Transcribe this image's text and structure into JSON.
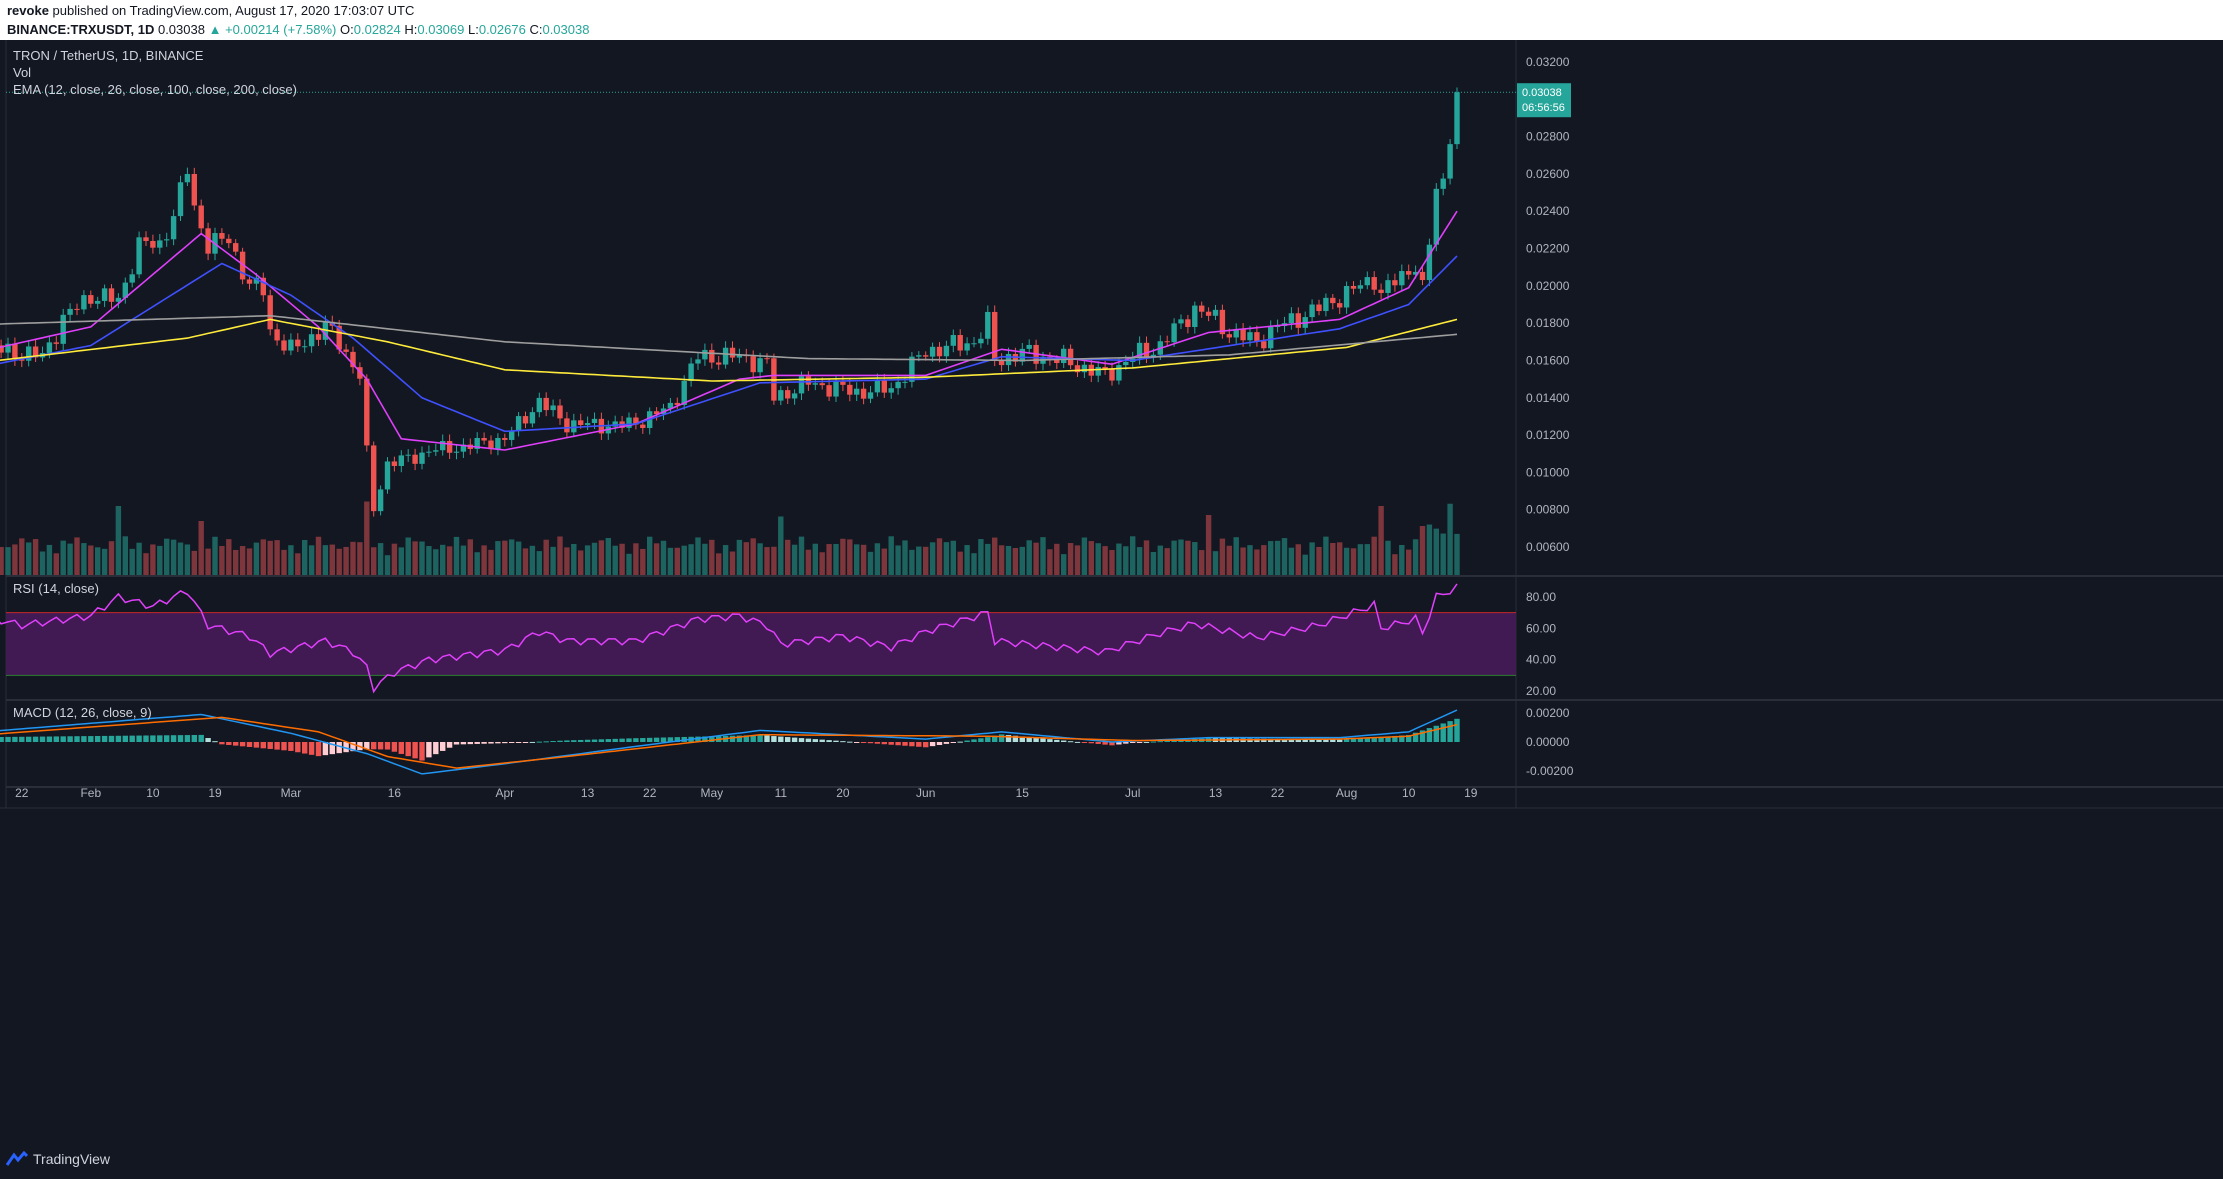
{
  "header": {
    "publisher": "revoke",
    "published_text": "published on TradingView.com, August 17, 2020 17:03:07 UTC",
    "symbol": "BINANCE:TRXUSDT, 1D",
    "last": "0.03038",
    "change": "▲ +0.00214 (+7.58%)",
    "o_label": "O:",
    "o_value": "0.02824",
    "h_label": "H:",
    "h_value": "0.03069",
    "l_label": "L:",
    "l_value": "0.02676",
    "c_label": "C:",
    "c_value": "0.03038"
  },
  "legend": {
    "pair": "TRON / TetherUS, 1D, BINANCE",
    "vol": "Vol",
    "ema": "EMA (12, close, 26, close, 100, close, 200, close)",
    "rsi": "RSI (14, close)",
    "macd": "MACD (12, 26, close, 9)"
  },
  "price_tag": {
    "price": "0.03038",
    "countdown": "06:56:56"
  },
  "footer": {
    "brand": "TradingView"
  },
  "colors": {
    "background": "#131722",
    "up": "#26a69a",
    "down": "#ef5350",
    "ema12": "#e040fb",
    "ema26": "#3f51ff",
    "ema100": "#ffeb3b",
    "ema200": "#9e9e9e",
    "rsi_line": "#e040fb",
    "rsi_band": "#4a1a5c",
    "macd_line": "#2196f3",
    "signal_line": "#ff6d00"
  },
  "chart_data": [
    {
      "type": "candlestick",
      "title": "TRON / TetherUS, 1D, BINANCE",
      "x_range": [
        "2020-01-14",
        "2020-08-17"
      ],
      "y_ticks": [
        "0.03200",
        "0.03000",
        "0.02800",
        "0.02600",
        "0.02400",
        "0.02200",
        "0.02000",
        "0.01800",
        "0.01600",
        "0.01400",
        "0.01200",
        "0.01000",
        "0.00800",
        "0.00600"
      ],
      "x_ticks": [
        "22",
        "Feb",
        "10",
        "19",
        "Mar",
        "16",
        "Apr",
        "13",
        "22",
        "May",
        "11",
        "20",
        "Jun",
        "15",
        "Jul",
        "13",
        "22",
        "Aug",
        "10",
        "19"
      ],
      "close_keypoints": [
        {
          "date": "2020-01-14",
          "close": 0.0168
        },
        {
          "date": "2020-01-25",
          "close": 0.0162
        },
        {
          "date": "2020-01-28",
          "close": 0.0182
        },
        {
          "date": "2020-02-01",
          "close": 0.0195
        },
        {
          "date": "2020-02-05",
          "close": 0.0192
        },
        {
          "date": "2020-02-08",
          "close": 0.0222
        },
        {
          "date": "2020-02-11",
          "close": 0.0222
        },
        {
          "date": "2020-02-13",
          "close": 0.0238
        },
        {
          "date": "2020-02-15",
          "close": 0.0262
        },
        {
          "date": "2020-02-16",
          "close": 0.0242
        },
        {
          "date": "2020-02-18",
          "close": 0.0222
        },
        {
          "date": "2020-02-21",
          "close": 0.0225
        },
        {
          "date": "2020-02-24",
          "close": 0.02
        },
        {
          "date": "2020-02-26",
          "close": 0.0198
        },
        {
          "date": "2020-02-27",
          "close": 0.0176
        },
        {
          "date": "2020-03-01",
          "close": 0.0165
        },
        {
          "date": "2020-03-06",
          "close": 0.0178
        },
        {
          "date": "2020-03-08",
          "close": 0.017
        },
        {
          "date": "2020-03-11",
          "close": 0.0152
        },
        {
          "date": "2020-03-12",
          "close": 0.011
        },
        {
          "date": "2020-03-13",
          "close": 0.008
        },
        {
          "date": "2020-03-15",
          "close": 0.0105
        },
        {
          "date": "2020-03-19",
          "close": 0.0108
        },
        {
          "date": "2020-03-21",
          "close": 0.0112
        },
        {
          "date": "2020-03-25",
          "close": 0.0113
        },
        {
          "date": "2020-04-01",
          "close": 0.0118
        },
        {
          "date": "2020-04-06",
          "close": 0.0138
        },
        {
          "date": "2020-04-10",
          "close": 0.0126
        },
        {
          "date": "2020-04-18",
          "close": 0.0125
        },
        {
          "date": "2020-04-21",
          "close": 0.0128
        },
        {
          "date": "2020-04-25",
          "close": 0.0135
        },
        {
          "date": "2020-04-29",
          "close": 0.0162
        },
        {
          "date": "2020-05-05",
          "close": 0.0162
        },
        {
          "date": "2020-05-09",
          "close": 0.0158
        },
        {
          "date": "2020-05-10",
          "close": 0.014
        },
        {
          "date": "2020-05-15",
          "close": 0.0148
        },
        {
          "date": "2020-05-22",
          "close": 0.0143
        },
        {
          "date": "2020-05-27",
          "close": 0.0145
        },
        {
          "date": "2020-06-01",
          "close": 0.0165
        },
        {
          "date": "2020-06-08",
          "close": 0.017
        },
        {
          "date": "2020-06-10",
          "close": 0.018
        },
        {
          "date": "2020-06-11",
          "close": 0.016
        },
        {
          "date": "2020-06-15",
          "close": 0.0164
        },
        {
          "date": "2020-06-21",
          "close": 0.016
        },
        {
          "date": "2020-06-27",
          "close": 0.0152
        },
        {
          "date": "2020-07-01",
          "close": 0.0162
        },
        {
          "date": "2020-07-05",
          "close": 0.0168
        },
        {
          "date": "2020-07-08",
          "close": 0.018
        },
        {
          "date": "2020-07-10",
          "close": 0.0188
        },
        {
          "date": "2020-07-13",
          "close": 0.0182
        },
        {
          "date": "2020-07-15",
          "close": 0.0175
        },
        {
          "date": "2020-07-19",
          "close": 0.017
        },
        {
          "date": "2020-07-22",
          "close": 0.0178
        },
        {
          "date": "2020-07-28",
          "close": 0.0188
        },
        {
          "date": "2020-08-01",
          "close": 0.0196
        },
        {
          "date": "2020-08-05",
          "close": 0.0204
        },
        {
          "date": "2020-08-06",
          "close": 0.0196
        },
        {
          "date": "2020-08-09",
          "close": 0.0205
        },
        {
          "date": "2020-08-11",
          "close": 0.0212
        },
        {
          "date": "2020-08-12",
          "close": 0.0198
        },
        {
          "date": "2020-08-13",
          "close": 0.0222
        },
        {
          "date": "2020-08-14",
          "close": 0.0252
        },
        {
          "date": "2020-08-15",
          "close": 0.0256
        },
        {
          "date": "2020-08-16",
          "close": 0.0282
        },
        {
          "date": "2020-08-17",
          "close": 0.03038
        }
      ],
      "ema_lines": [
        {
          "name": "EMA 12",
          "color": "#e040fb",
          "points": [
            [
              "2020-01-14",
              0.0163
            ],
            [
              "2020-02-01",
              0.0178
            ],
            [
              "2020-02-17",
              0.0228
            ],
            [
              "2020-02-25",
              0.0206
            ],
            [
              "2020-03-05",
              0.0178
            ],
            [
              "2020-03-12",
              0.015
            ],
            [
              "2020-03-17",
              0.0118
            ],
            [
              "2020-04-01",
              0.0112
            ],
            [
              "2020-04-20",
              0.0126
            ],
            [
              "2020-05-05",
              0.015
            ],
            [
              "2020-05-10",
              0.0152
            ],
            [
              "2020-06-01",
              0.0152
            ],
            [
              "2020-06-12",
              0.0166
            ],
            [
              "2020-06-28",
              0.0158
            ],
            [
              "2020-07-12",
              0.0175
            ],
            [
              "2020-07-31",
              0.0182
            ],
            [
              "2020-08-10",
              0.0199
            ],
            [
              "2020-08-17",
              0.024
            ]
          ]
        },
        {
          "name": "EMA 26",
          "color": "#3f51ff",
          "points": [
            [
              "2020-01-14",
              0.0155
            ],
            [
              "2020-02-01",
              0.0168
            ],
            [
              "2020-02-20",
              0.0212
            ],
            [
              "2020-03-01",
              0.0195
            ],
            [
              "2020-03-10",
              0.0172
            ],
            [
              "2020-03-20",
              0.014
            ],
            [
              "2020-04-01",
              0.0122
            ],
            [
              "2020-04-20",
              0.0126
            ],
            [
              "2020-05-08",
              0.0148
            ],
            [
              "2020-06-01",
              0.015
            ],
            [
              "2020-06-12",
              0.0162
            ],
            [
              "2020-07-01",
              0.016
            ],
            [
              "2020-07-31",
              0.0177
            ],
            [
              "2020-08-10",
              0.019
            ],
            [
              "2020-08-17",
              0.0216
            ]
          ]
        },
        {
          "name": "EMA 100",
          "color": "#ffeb3b",
          "points": [
            [
              "2020-01-14",
              0.0158
            ],
            [
              "2020-02-15",
              0.0172
            ],
            [
              "2020-02-27",
              0.0182
            ],
            [
              "2020-03-15",
              0.017
            ],
            [
              "2020-04-01",
              0.0155
            ],
            [
              "2020-05-01",
              0.0149
            ],
            [
              "2020-06-01",
              0.0151
            ],
            [
              "2020-07-01",
              0.0156
            ],
            [
              "2020-08-01",
              0.0167
            ],
            [
              "2020-08-17",
              0.0182
            ]
          ]
        },
        {
          "name": "EMA 200",
          "color": "#9e9e9e",
          "points": [
            [
              "2020-01-14",
              0.0179
            ],
            [
              "2020-02-27",
              0.0184
            ],
            [
              "2020-04-01",
              0.017
            ],
            [
              "2020-05-15",
              0.0161
            ],
            [
              "2020-06-15",
              0.016
            ],
            [
              "2020-07-15",
              0.0163
            ],
            [
              "2020-08-17",
              0.0174
            ]
          ]
        }
      ]
    },
    {
      "type": "bar",
      "title": "Vol",
      "note": "daily volume, colored by candle direction",
      "spikes": [
        [
          "2020-02-05",
          0.92
        ],
        [
          "2020-02-17",
          0.72
        ],
        [
          "2020-03-12",
          0.98
        ],
        [
          "2020-05-11",
          0.78
        ],
        [
          "2020-07-12",
          0.8
        ],
        [
          "2020-08-06",
          0.92
        ],
        [
          "2020-08-16",
          0.95
        ]
      ]
    },
    {
      "type": "line",
      "title": "RSI (14, close)",
      "y_ticks": [
        "80.00",
        "60.00",
        "40.00",
        "20.00"
      ],
      "bands": {
        "upper": 70,
        "lower": 30
      },
      "points": [
        [
          "2020-01-14",
          70
        ],
        [
          "2020-01-22",
          62
        ],
        [
          "2020-02-01",
          68
        ],
        [
          "2020-02-05",
          80
        ],
        [
          "2020-02-10",
          74
        ],
        [
          "2020-02-15",
          84
        ],
        [
          "2020-02-18",
          62
        ],
        [
          "2020-02-24",
          55
        ],
        [
          "2020-02-27",
          44
        ],
        [
          "2020-03-06",
          52
        ],
        [
          "2020-03-10",
          45
        ],
        [
          "2020-03-12",
          35
        ],
        [
          "2020-03-13",
          22
        ],
        [
          "2020-03-16",
          32
        ],
        [
          "2020-03-21",
          40
        ],
        [
          "2020-04-01",
          46
        ],
        [
          "2020-04-06",
          58
        ],
        [
          "2020-04-10",
          52
        ],
        [
          "2020-04-20",
          52
        ],
        [
          "2020-04-29",
          66
        ],
        [
          "2020-05-05",
          68
        ],
        [
          "2020-05-09",
          62
        ],
        [
          "2020-05-11",
          50
        ],
        [
          "2020-05-20",
          55
        ],
        [
          "2020-05-27",
          48
        ],
        [
          "2020-06-01",
          58
        ],
        [
          "2020-06-10",
          70
        ],
        [
          "2020-06-11",
          52
        ],
        [
          "2020-06-27",
          45
        ],
        [
          "2020-07-05",
          57
        ],
        [
          "2020-07-10",
          63
        ],
        [
          "2020-07-19",
          54
        ],
        [
          "2020-07-28",
          62
        ],
        [
          "2020-08-05",
          75
        ],
        [
          "2020-08-06",
          60
        ],
        [
          "2020-08-11",
          66
        ],
        [
          "2020-08-12",
          57
        ],
        [
          "2020-08-14",
          80
        ],
        [
          "2020-08-17",
          86
        ]
      ]
    },
    {
      "type": "line",
      "title": "MACD (12, 26, close, 9)",
      "y_ticks": [
        "0.00200",
        "0.00000",
        "-0.00200"
      ],
      "series": [
        {
          "name": "MACD",
          "color": "#2196f3",
          "points": [
            [
              "2020-01-14",
              0.0006
            ],
            [
              "2020-02-17",
              0.0019
            ],
            [
              "2020-03-01",
              0.0006
            ],
            [
              "2020-03-12",
              -0.0008
            ],
            [
              "2020-03-20",
              -0.0022
            ],
            [
              "2020-04-01",
              -0.0015
            ],
            [
              "2020-04-20",
              -0.0003
            ],
            [
              "2020-05-08",
              0.0008
            ],
            [
              "2020-06-01",
              0.0002
            ],
            [
              "2020-06-12",
              0.0007
            ],
            [
              "2020-06-28",
              0.0
            ],
            [
              "2020-07-12",
              0.0003
            ],
            [
              "2020-07-31",
              0.0003
            ],
            [
              "2020-08-10",
              0.0007
            ],
            [
              "2020-08-17",
              0.0022
            ]
          ]
        },
        {
          "name": "Signal",
          "color": "#ff6d00",
          "points": [
            [
              "2020-01-14",
              0.0004
            ],
            [
              "2020-02-20",
              0.0017
            ],
            [
              "2020-03-05",
              0.0007
            ],
            [
              "2020-03-15",
              -0.001
            ],
            [
              "2020-03-25",
              -0.0018
            ],
            [
              "2020-04-10",
              -0.001
            ],
            [
              "2020-05-08",
              0.0005
            ],
            [
              "2020-06-10",
              0.0004
            ],
            [
              "2020-07-01",
              0.0001
            ],
            [
              "2020-07-31",
              0.0002
            ],
            [
              "2020-08-10",
              0.0004
            ],
            [
              "2020-08-17",
              0.0012
            ]
          ]
        }
      ]
    }
  ]
}
